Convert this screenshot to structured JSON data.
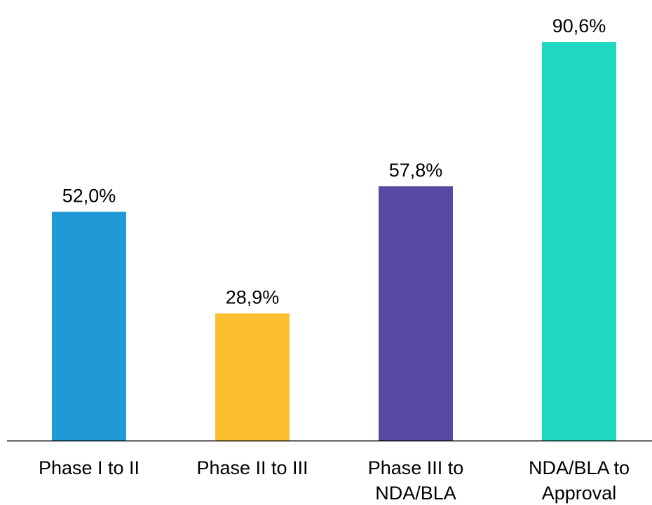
{
  "chart_data": {
    "type": "bar",
    "categories": [
      [
        "Phase I to II"
      ],
      [
        "Phase II to III"
      ],
      [
        "Phase III to",
        "NDA/BLA"
      ],
      [
        "NDA/BLA to",
        "Approval"
      ]
    ],
    "values": [
      52.0,
      28.9,
      57.8,
      90.6
    ],
    "data_labels": [
      "52,0%",
      "28,9%",
      "57,8%",
      "90,6%"
    ],
    "colors": [
      "#1F9AD6",
      "#FDBF2D",
      "#584AA3",
      "#1FD8C1"
    ],
    "unit": "%",
    "title": "",
    "xlabel": "",
    "ylabel": "",
    "ylim": [
      0,
      100
    ],
    "grid": false,
    "legend": false,
    "axis_line_color": "#000000"
  }
}
